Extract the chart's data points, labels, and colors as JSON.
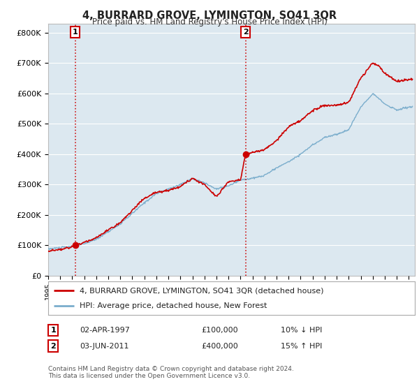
{
  "title": "4, BURRARD GROVE, LYMINGTON, SO41 3QR",
  "subtitle": "Price paid vs. HM Land Registry's House Price Index (HPI)",
  "ylabel_ticks": [
    "£0",
    "£100K",
    "£200K",
    "£300K",
    "£400K",
    "£500K",
    "£600K",
    "£700K",
    "£800K"
  ],
  "ytick_values": [
    0,
    100000,
    200000,
    300000,
    400000,
    500000,
    600000,
    700000,
    800000
  ],
  "ylim": [
    0,
    830000
  ],
  "xlim_start": 1995.0,
  "xlim_end": 2025.5,
  "legend_line1": "4, BURRARD GROVE, LYMINGTON, SO41 3QR (detached house)",
  "legend_line2": "HPI: Average price, detached house, New Forest",
  "sale1_label": "1",
  "sale1_date": "02-APR-1997",
  "sale1_price": "£100,000",
  "sale1_hpi": "10% ↓ HPI",
  "sale2_label": "2",
  "sale2_date": "03-JUN-2011",
  "sale2_price": "£400,000",
  "sale2_hpi": "15% ↑ HPI",
  "footnote": "Contains HM Land Registry data © Crown copyright and database right 2024.\nThis data is licensed under the Open Government Licence v3.0.",
  "red_color": "#cc0000",
  "blue_color": "#7aadcc",
  "bg_color": "#dce8f0",
  "grid_color": "#ffffff",
  "sale1_year": 1997.25,
  "sale2_year": 2011.42,
  "hpi_start_year": 1995,
  "hpi_end_year": 2025,
  "fig_bg": "#ffffff"
}
